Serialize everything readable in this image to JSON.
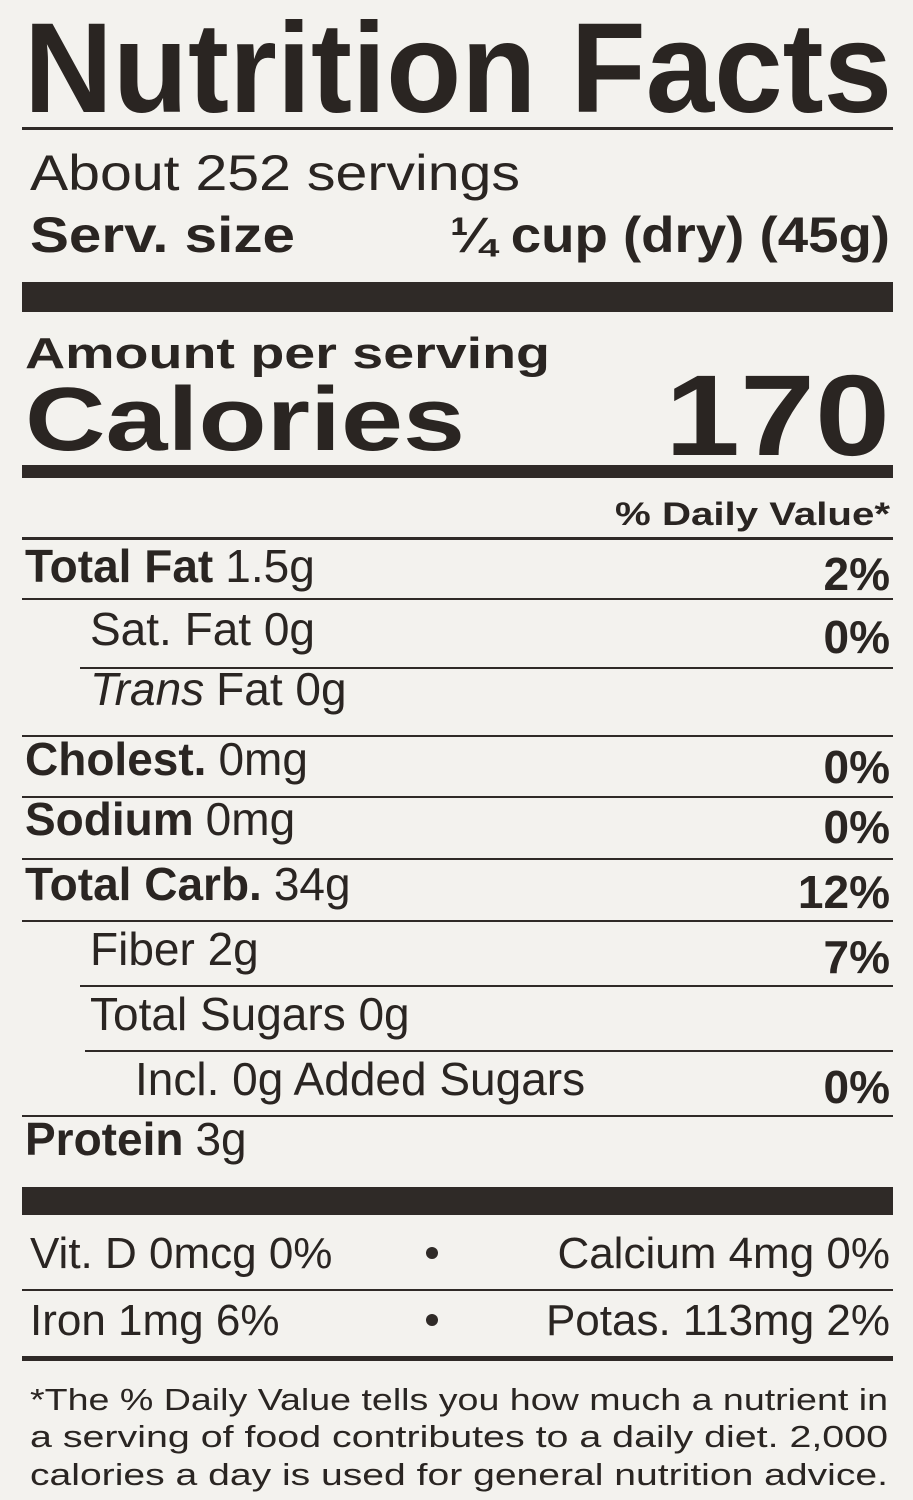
{
  "title": "Nutrition Facts",
  "servings": "About 252 servings",
  "serving_size": {
    "label": "Serv. size",
    "value": "¼ cup (dry) (45g)"
  },
  "amount_per_serving": "Amount per serving",
  "calories": {
    "label": "Calories",
    "value": "170"
  },
  "daily_value_header": "% Daily Value*",
  "rows": [
    {
      "label": "Total Fat",
      "amount": "1.5g",
      "dv": "2%",
      "style": "bold",
      "indent": 0
    },
    {
      "label": "Sat. Fat 0g",
      "dv": "0%",
      "indent": 1
    },
    {
      "label": "Trans",
      "amount": "Fat 0g",
      "style": "italic",
      "indent": 1
    },
    {
      "label": "Cholest.",
      "amount": "0mg",
      "dv": "0%",
      "style": "bold",
      "indent": 0
    },
    {
      "label": "Sodium",
      "amount": "0mg",
      "dv": "0%",
      "style": "bold",
      "indent": 0
    },
    {
      "label": "Total Carb.",
      "amount": "34g",
      "dv": "12%",
      "style": "bold",
      "indent": 0
    },
    {
      "label": "Fiber 2g",
      "dv": "7%",
      "indent": 1
    },
    {
      "label": "Total Sugars 0g",
      "indent": 1
    },
    {
      "label": "Incl. 0g Added Sugars",
      "dv": "0%",
      "indent": 2
    },
    {
      "label": "Protein",
      "amount": "3g",
      "style": "bold",
      "indent": 0
    }
  ],
  "vitamins": [
    [
      "Vit. D 0mcg 0%",
      "Calcium 4mg 0%"
    ],
    [
      "Iron 1mg 6%",
      "Potas. 113mg 2%"
    ]
  ],
  "footnote": [
    "*The % Daily Value tells you how much a nutrient in",
    "a serving of food contributes to a daily diet. 2,000",
    "calories a day is used for general nutrition advice."
  ]
}
